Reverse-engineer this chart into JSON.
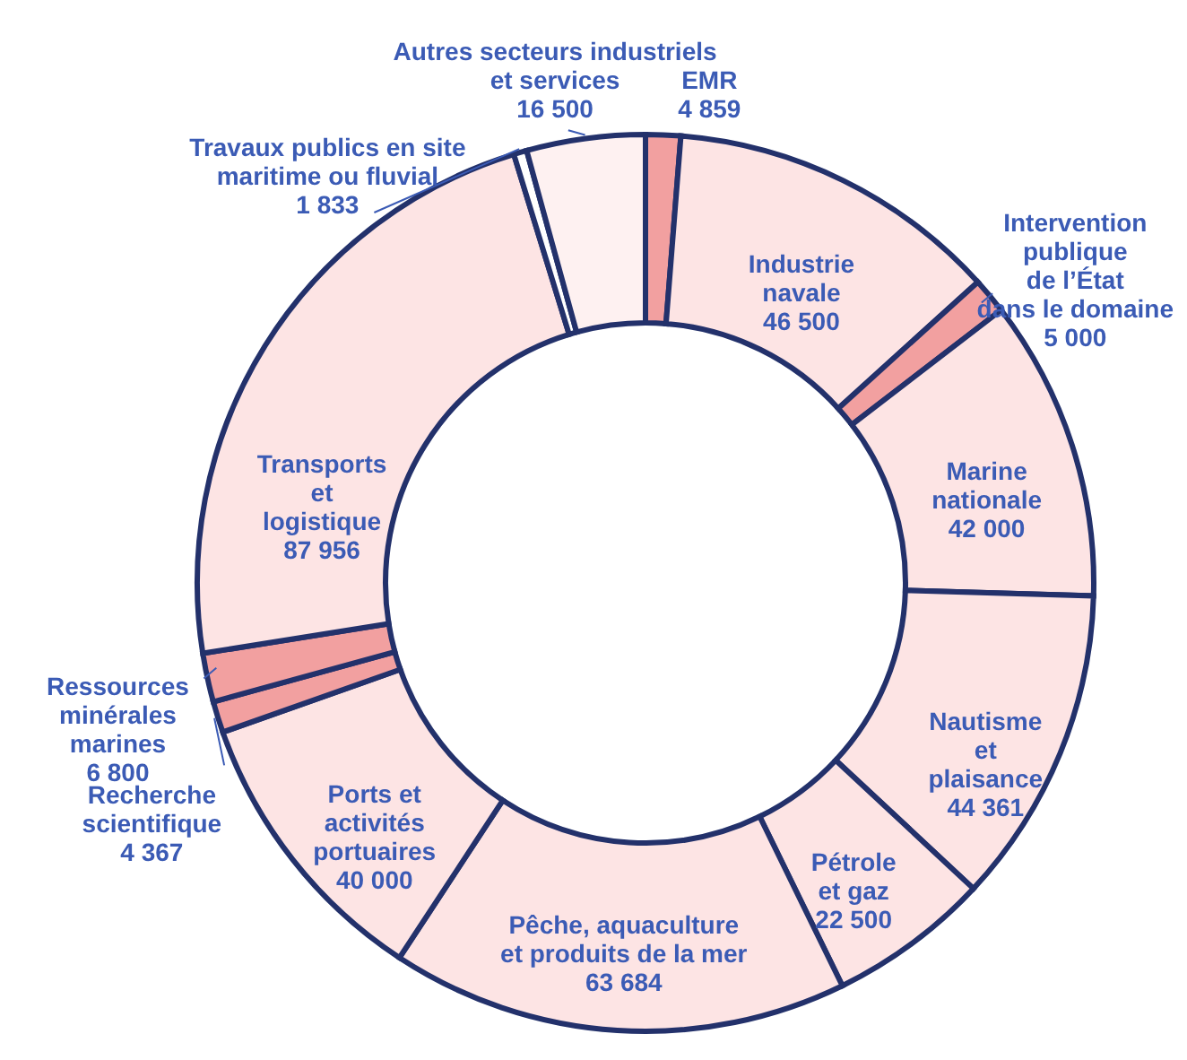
{
  "chart_data": {
    "type": "donut",
    "categories": [
      "EMR",
      "Industrie navale",
      "Intervention publique de l’État dans le domaine",
      "Marine nationale",
      "Nautisme et plaisance",
      "Pétrole et gaz",
      "Pêche, aquaculture et produits de la mer",
      "Ports et activités portuaires",
      "Recherche scientifique",
      "Ressources minérales marines",
      "Transports et logistique",
      "Travaux publics en site maritime ou fluvial",
      "Autres secteurs industriels et services"
    ],
    "values": [
      4859,
      46500,
      5000,
      42000,
      44361,
      22500,
      63684,
      40000,
      4367,
      6800,
      87956,
      1833,
      16500
    ],
    "value_labels": [
      "4 859",
      "46 500",
      "5 000",
      "42 000",
      "44 361",
      "22 500",
      "63 684",
      "40 000",
      "4 367",
      "6 800",
      "87 956",
      "1 833",
      "16 500"
    ],
    "colors": [
      "#f2a0a0",
      "#fde4e4",
      "#f2a0a0",
      "#fde4e4",
      "#fde4e4",
      "#fde4e4",
      "#fde4e4",
      "#fde4e4",
      "#f2a0a0",
      "#f2a0a0",
      "#fde4e4",
      "#ffffff",
      "#fef1f1"
    ]
  }
}
